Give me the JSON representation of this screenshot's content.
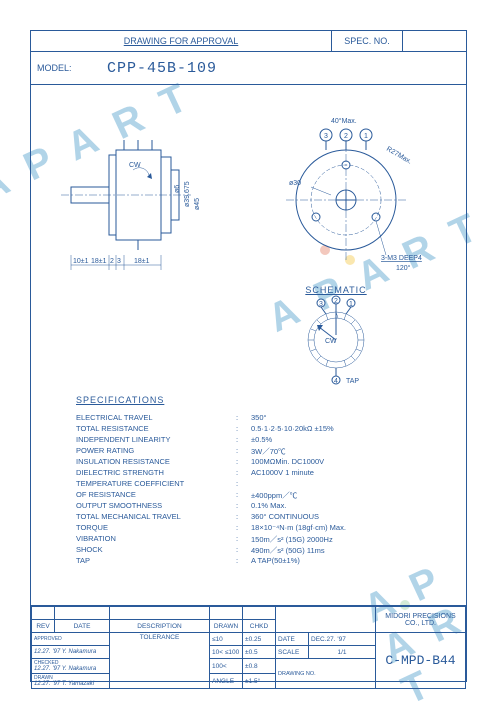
{
  "header": {
    "drawing_for": "DRAWING FOR APPROVAL",
    "spec_no_label": "SPEC. NO.",
    "model_label": "MODEL:",
    "model_value": "CPP-45B-109"
  },
  "side_view": {
    "dims": {
      "d1": "10±1",
      "d2": "18±1",
      "d3": "2",
      "d4": "3",
      "d5": "18±1",
      "dia1": "ø6",
      "dia1_tol": "-0.05",
      "dia2": "ø39.675",
      "dia2_tol": "-0.05",
      "dia3": "ø45",
      "cw": "CW"
    }
  },
  "top_view": {
    "angle_top": "40°Max.",
    "r_note": "R27Max.",
    "term_1": "3",
    "term_2": "2",
    "term_3": "1",
    "dia_bolt": "ø30",
    "hole_note": "3-M3 DEEP4",
    "hole_angle": "120°"
  },
  "schematic": {
    "title": "SCHEMATIC",
    "t1": "3",
    "t2": "2",
    "t3": "1",
    "cw": "CW",
    "tap_num": "4",
    "tap_label": "TAP"
  },
  "specs": {
    "title": "SPECIFICATIONS",
    "rows": [
      {
        "label": "ELECTRICAL TRAVEL",
        "value": "350°"
      },
      {
        "label": "TOTAL RESISTANCE",
        "value": "0.5·1·2·5·10·20kΩ ±15%"
      },
      {
        "label": "INDEPENDENT LINEARITY",
        "value": "±0.5%"
      },
      {
        "label": "POWER RATING",
        "value": "3W／70℃"
      },
      {
        "label": "INSULATION RESISTANCE",
        "value": "100MΩMin.  DC1000V"
      },
      {
        "label": "DIELECTRIC STRENGTH",
        "value": "AC1000V  1 minute"
      },
      {
        "label": "TEMPERATURE COEFFICIENT",
        "value": ""
      },
      {
        "label": "  OF RESISTANCE",
        "value": "±400ppm／℃"
      },
      {
        "label": "OUTPUT SMOOTHNESS",
        "value": "0.1% Max."
      },
      {
        "label": "TOTAL MECHANICAL TRAVEL",
        "value": "360° CONTINUOUS"
      },
      {
        "label": "TORQUE",
        "value": "18×10⁻⁴N·m (18gf·cm) Max."
      },
      {
        "label": "VIBRATION",
        "value": "150m／s² (15G)  2000Hz"
      },
      {
        "label": "SHOCK",
        "value": "490m／s² (50G)  11ms"
      },
      {
        "label": "TAP",
        "value": "A TAP(50±1%)"
      }
    ]
  },
  "footer": {
    "rev_hdr": {
      "rev": "REV",
      "date": "DATE",
      "desc": "DESCRIPTION",
      "drawn": "DRAWN",
      "chkd": "CHKD"
    },
    "approved_label": "APPROVED",
    "approved": "12.27. '97 Y. Nakamura",
    "checked_label": "CHECKED",
    "checked": "12.27. '97 Y. Nakamura",
    "drawn_label": "DRAWN",
    "drawn": "12.27. '97 T. Yamazaki",
    "tol_label": "TOLERANCE",
    "tol_rows": [
      {
        "range": "≤10",
        "tol": "±0.25"
      },
      {
        "range": "10<  ≤100",
        "tol": "±0.5"
      },
      {
        "range": "100<",
        "tol": "±0.8"
      },
      {
        "range": "ANGLE",
        "tol": "±1.5°"
      }
    ],
    "date_label": "DATE",
    "date_val": "DEC.27. '97",
    "scale_label": "SCALE",
    "scale_val": "1/1",
    "drawing_no_label": "DRAWING NO.",
    "company": "MIDORI PRECISIONS CO., LTD.",
    "drawing_no": "C-MPD-B44"
  },
  "watermark_text": "A P A R T",
  "colors": {
    "line": "#2a5a9a",
    "wm": "rgba(100,170,210,0.5)",
    "dot_red": "#e8927c",
    "dot_yel": "#f5d060",
    "dot_grn": "#a8d8b0"
  }
}
